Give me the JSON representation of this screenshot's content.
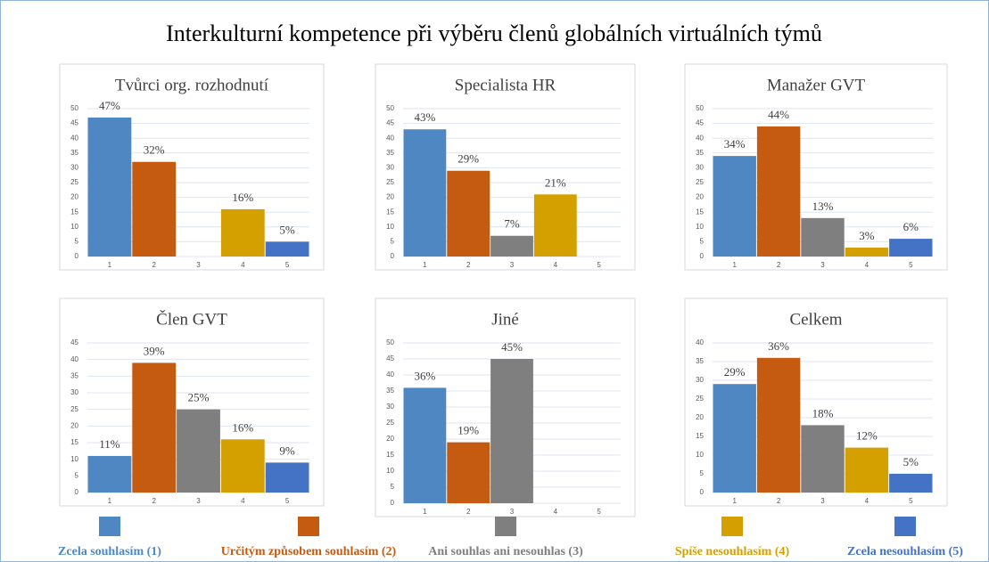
{
  "title": "Interkulturní kompetence při výběru členů globálních virtuálních týmů",
  "chart_data": [
    {
      "type": "bar",
      "title": "Tvůrci org. rozhodnutí",
      "categories": [
        "1",
        "2",
        "3",
        "4",
        "5"
      ],
      "values": [
        47,
        32,
        null,
        16,
        5
      ],
      "value_labels": [
        "47%",
        "32%",
        null,
        "16%",
        "5%"
      ],
      "colors": [
        "#4f87c2",
        "#c55a11",
        "#7f7f7f",
        "#d4a000",
        "#4472c4"
      ],
      "ylim": [
        0,
        50
      ],
      "yticks": [
        0,
        5,
        10,
        15,
        20,
        25,
        30,
        35,
        40,
        45,
        50
      ],
      "grid": true
    },
    {
      "type": "bar",
      "title": "Specialista HR",
      "categories": [
        "1",
        "2",
        "3",
        "4",
        "5"
      ],
      "values": [
        43,
        29,
        7,
        21,
        null
      ],
      "value_labels": [
        "43%",
        "29%",
        "7%",
        "21%",
        null
      ],
      "colors": [
        "#4f87c2",
        "#c55a11",
        "#7f7f7f",
        "#d4a000",
        "#4472c4"
      ],
      "ylim": [
        0,
        50
      ],
      "yticks": [
        0,
        5,
        10,
        15,
        20,
        25,
        30,
        35,
        40,
        45,
        50
      ],
      "grid": true
    },
    {
      "type": "bar",
      "title": "Manažer GVT",
      "categories": [
        "1",
        "2",
        "3",
        "4",
        "5"
      ],
      "values": [
        34,
        44,
        13,
        3,
        6
      ],
      "value_labels": [
        "34%",
        "44%",
        "13%",
        "3%",
        "6%"
      ],
      "colors": [
        "#4f87c2",
        "#c55a11",
        "#7f7f7f",
        "#d4a000",
        "#4472c4"
      ],
      "ylim": [
        0,
        50
      ],
      "yticks": [
        0,
        5,
        10,
        15,
        20,
        25,
        30,
        35,
        40,
        45,
        50
      ],
      "grid": true
    },
    {
      "type": "bar",
      "title": "Člen GVT",
      "categories": [
        "1",
        "2",
        "3",
        "4",
        "5"
      ],
      "values": [
        11,
        39,
        25,
        16,
        9
      ],
      "value_labels": [
        "11%",
        "39%",
        "25%",
        "16%",
        "9%"
      ],
      "colors": [
        "#4f87c2",
        "#c55a11",
        "#7f7f7f",
        "#d4a000",
        "#4472c4"
      ],
      "ylim": [
        0,
        45
      ],
      "yticks": [
        0,
        5,
        10,
        15,
        20,
        25,
        30,
        35,
        40,
        45
      ],
      "grid": true
    },
    {
      "type": "bar",
      "title": "Jiné",
      "categories": [
        "1",
        "2",
        "3",
        "4",
        "5"
      ],
      "values": [
        36,
        19,
        45,
        null,
        null
      ],
      "value_labels": [
        "36%",
        "19%",
        "45%",
        null,
        null
      ],
      "colors": [
        "#4f87c2",
        "#c55a11",
        "#7f7f7f",
        "#d4a000",
        "#4472c4"
      ],
      "ylim": [
        0,
        50
      ],
      "yticks": [
        0,
        5,
        10,
        15,
        20,
        25,
        30,
        35,
        40,
        45,
        50
      ],
      "grid": true
    },
    {
      "type": "bar",
      "title": "Celkem",
      "categories": [
        "1",
        "2",
        "3",
        "4",
        "5"
      ],
      "values": [
        29,
        36,
        18,
        12,
        5
      ],
      "value_labels": [
        "29%",
        "36%",
        "18%",
        "12%",
        "5%"
      ],
      "colors": [
        "#4f87c2",
        "#c55a11",
        "#7f7f7f",
        "#d4a000",
        "#4472c4"
      ],
      "ylim": [
        0,
        40
      ],
      "yticks": [
        0,
        5,
        10,
        15,
        20,
        25,
        30,
        35,
        40
      ],
      "grid": true
    }
  ],
  "legend": {
    "items": [
      {
        "label": "Zcela souhlasím (1)",
        "color": "#4f87c2"
      },
      {
        "label": "Určitým způsobem souhlasím (2)",
        "color": "#c55a11"
      },
      {
        "label": "Ani souhlas ani nesouhlas (3)",
        "color": "#7f7f7f"
      },
      {
        "label": "Spíše nesouhlasím (4)",
        "color": "#d4a000"
      },
      {
        "label": "Zcela nesouhlasím (5)",
        "color": "#4472c4"
      }
    ]
  }
}
